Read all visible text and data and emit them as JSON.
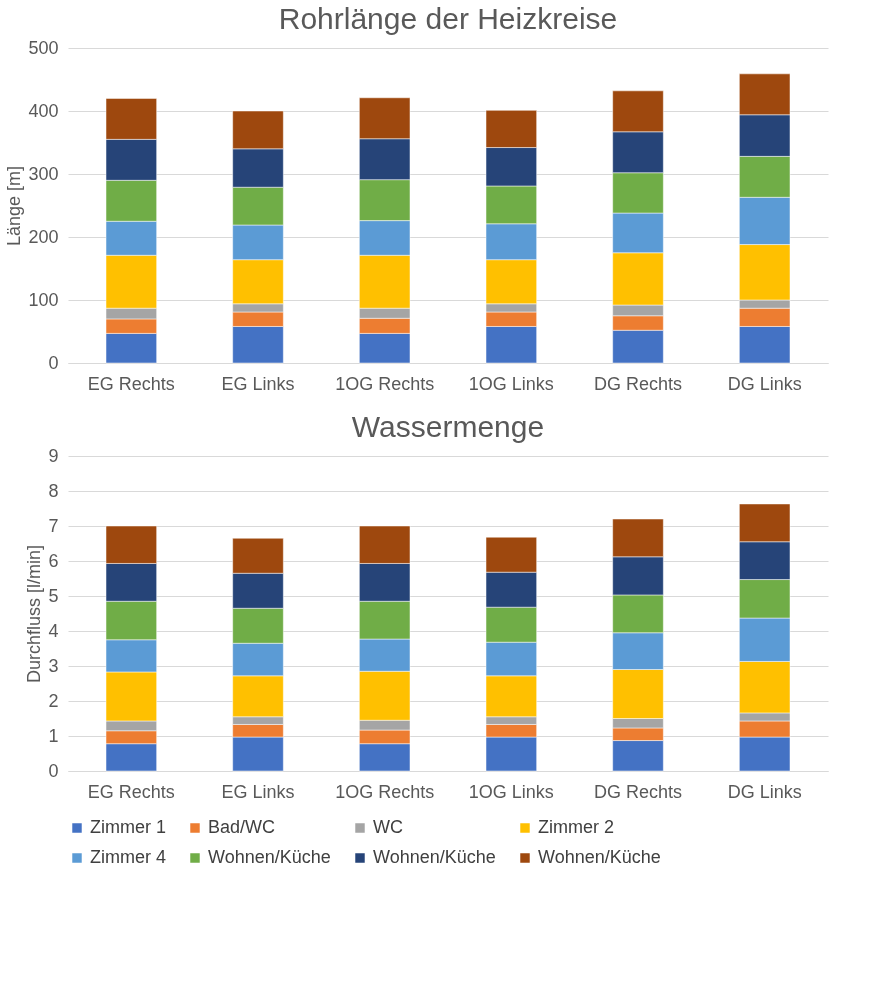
{
  "chart_data": [
    {
      "type": "bar",
      "stacked": true,
      "title": "Rohrlänge der Heizkreise",
      "ylabel": "Länge [m]",
      "categories": [
        "EG Rechts",
        "EG Links",
        "1OG Rechts",
        "1OG Links",
        "DG Rechts",
        "DG Links"
      ],
      "ylim": [
        0,
        500
      ],
      "yticks": [
        0,
        100,
        200,
        300,
        400,
        500
      ],
      "grid": "y",
      "legend": false,
      "series": [
        {
          "color": "#4472c4",
          "values": [
            47,
            58,
            47,
            58,
            52,
            58
          ]
        },
        {
          "color": "#ed7d31",
          "values": [
            23,
            23,
            24,
            23,
            23,
            29
          ]
        },
        {
          "color": "#a5a5a5",
          "values": [
            17,
            13,
            16,
            13,
            17,
            13
          ]
        },
        {
          "color": "#ffc000",
          "values": [
            84,
            70,
            84,
            70,
            83,
            88
          ]
        },
        {
          "color": "#5b9bd5",
          "values": [
            54,
            55,
            55,
            57,
            63,
            75
          ]
        },
        {
          "color": "#70ad47",
          "values": [
            65,
            60,
            65,
            60,
            64,
            65
          ]
        },
        {
          "color": "#264478",
          "values": [
            65,
            61,
            65,
            61,
            65,
            66
          ]
        },
        {
          "color": "#9e480e",
          "values": [
            65,
            60,
            65,
            59,
            65,
            65
          ]
        }
      ]
    },
    {
      "type": "bar",
      "stacked": true,
      "title": "Wassermenge",
      "ylabel": "Durchfluss [l/min]",
      "categories": [
        "EG Rechts",
        "EG Links",
        "1OG Rechts",
        "1OG Links",
        "DG Rechts",
        "DG Links"
      ],
      "ylim": [
        0,
        9
      ],
      "yticks": [
        0,
        1,
        2,
        3,
        4,
        5,
        6,
        7,
        8,
        9
      ],
      "grid": "y",
      "legend": "bottom",
      "series": [
        {
          "name": "Zimmer 1",
          "color": "#4472c4",
          "values": [
            0.78,
            0.97,
            0.78,
            0.97,
            0.87,
            0.97
          ]
        },
        {
          "name": "Bad/WC",
          "color": "#ed7d31",
          "values": [
            0.37,
            0.36,
            0.39,
            0.36,
            0.36,
            0.46
          ]
        },
        {
          "name": "WC",
          "color": "#a5a5a5",
          "values": [
            0.28,
            0.22,
            0.28,
            0.22,
            0.27,
            0.23
          ]
        },
        {
          "name": "Zimmer 2",
          "color": "#ffc000",
          "values": [
            1.4,
            1.17,
            1.4,
            1.17,
            1.4,
            1.47
          ]
        },
        {
          "name": "Zimmer 4",
          "color": "#5b9bd5",
          "values": [
            0.92,
            0.93,
            0.92,
            0.96,
            1.05,
            1.24
          ]
        },
        {
          "name": "Wohnen/Küche",
          "color": "#70ad47",
          "values": [
            1.1,
            1.0,
            1.08,
            1.0,
            1.08,
            1.1
          ]
        },
        {
          "name": "Wohnen/Küche",
          "color": "#264478",
          "values": [
            1.08,
            1.0,
            1.08,
            1.0,
            1.09,
            1.08
          ]
        },
        {
          "name": "Wohnen/Küche",
          "color": "#9e480e",
          "values": [
            1.07,
            1.0,
            1.07,
            1.0,
            1.08,
            1.08
          ]
        }
      ]
    }
  ]
}
